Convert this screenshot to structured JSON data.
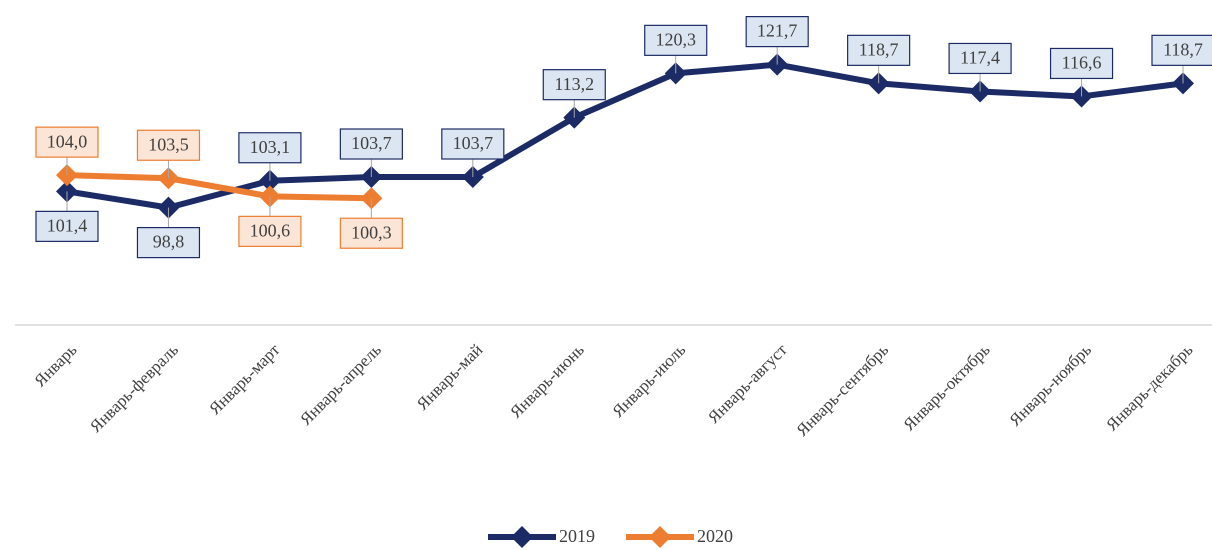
{
  "chart_data": {
    "type": "line",
    "categories": [
      "Январь",
      "Январь-февраль",
      "Январь-март",
      "Январь-апрель",
      "Январь-май",
      "Январь-июнь",
      "Январь-июль",
      "Январь-август",
      "Январь-сентябрь",
      "Январь-октябрь",
      "Январь-ноябрь",
      "Январь-декабрь"
    ],
    "series": [
      {
        "name": "2019",
        "color": "#1c2b66",
        "values": [
          101.4,
          98.8,
          103.1,
          103.7,
          103.7,
          113.2,
          120.3,
          121.7,
          118.7,
          117.4,
          116.6,
          118.7
        ],
        "value_labels": [
          "101,4",
          "98,8",
          "103,1",
          "103,7",
          "103,7",
          "113,2",
          "120,3",
          "121,7",
          "118,7",
          "117,4",
          "116,6",
          "118,7"
        ]
      },
      {
        "name": "2020",
        "color": "#ed7d31",
        "values": [
          104.0,
          103.5,
          100.6,
          100.3,
          null,
          null,
          null,
          null,
          null,
          null,
          null,
          null
        ],
        "value_labels": [
          "104,0",
          "103,5",
          "100,6",
          "100,3",
          null,
          null,
          null,
          null,
          null,
          null,
          null,
          null
        ]
      }
    ],
    "ylim": [
      80,
      125
    ],
    "legend": "bottom"
  }
}
